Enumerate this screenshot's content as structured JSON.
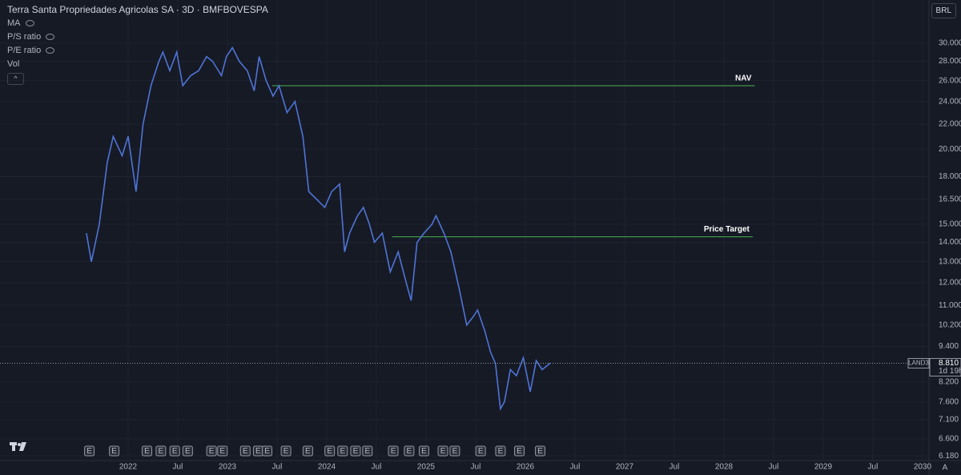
{
  "header": {
    "title": "Terra Santa Propriedades Agricolas SA · 3D · BMFBOVESPA",
    "indicators": [
      "MA",
      "P/S ratio",
      "P/E ratio",
      "Vol"
    ],
    "currency": "BRL",
    "auto": "A"
  },
  "chart_data": {
    "type": "line",
    "log_scale": true,
    "grid": true,
    "color": "#4f74d6",
    "x": [
      2021.58,
      2021.63,
      2021.71,
      2021.79,
      2021.85,
      2021.94,
      2022.0,
      2022.08,
      2022.15,
      2022.23,
      2022.31,
      2022.35,
      2022.42,
      2022.49,
      2022.55,
      2022.63,
      2022.71,
      2022.79,
      2022.85,
      2022.94,
      2022.99,
      2023.05,
      2023.12,
      2023.2,
      2023.27,
      2023.32,
      2023.39,
      2023.46,
      2023.52,
      2023.6,
      2023.68,
      2023.76,
      2023.82,
      2023.9,
      2023.98,
      2024.05,
      2024.13,
      2024.18,
      2024.23,
      2024.31,
      2024.37,
      2024.43,
      2024.48,
      2024.56,
      2024.64,
      2024.72,
      2024.8,
      2024.85,
      2024.91,
      2024.98,
      2025.06,
      2025.1,
      2025.18,
      2025.25,
      2025.33,
      2025.41,
      2025.47,
      2025.52,
      2025.59,
      2025.65,
      2025.7,
      2025.75,
      2025.79,
      2025.85,
      2025.91,
      2025.98,
      2026.05,
      2026.11,
      2026.17,
      2026.25
    ],
    "values": [
      14.5,
      13.0,
      15.0,
      19.0,
      21.0,
      19.5,
      21.0,
      17.0,
      22.0,
      25.5,
      28.0,
      29.0,
      27.0,
      29.0,
      25.5,
      26.5,
      27.0,
      28.5,
      28.0,
      26.5,
      28.5,
      29.5,
      28.0,
      27.0,
      25.0,
      28.5,
      26.0,
      24.5,
      25.5,
      23.0,
      24.0,
      21.0,
      17.0,
      16.5,
      16.0,
      17.0,
      17.5,
      13.5,
      14.5,
      15.5,
      16.0,
      15.0,
      14.0,
      14.5,
      12.5,
      13.5,
      12.0,
      11.2,
      14.0,
      14.5,
      15.0,
      15.5,
      14.5,
      13.5,
      11.8,
      10.2,
      10.5,
      10.8,
      10.0,
      9.2,
      8.8,
      7.4,
      7.6,
      8.6,
      8.4,
      9.0,
      7.9,
      8.9,
      8.6,
      8.81
    ],
    "xlim": [
      2020.71,
      2030.065
    ],
    "xticks": [
      {
        "value": 2022,
        "label": "2022"
      },
      {
        "value": 2022.5,
        "label": "Jul"
      },
      {
        "value": 2023,
        "label": "2023"
      },
      {
        "value": 2023.5,
        "label": "Jul"
      },
      {
        "value": 2024,
        "label": "2024"
      },
      {
        "value": 2024.5,
        "label": "Jul"
      },
      {
        "value": 2025,
        "label": "2025"
      },
      {
        "value": 2025.5,
        "label": "Jul"
      },
      {
        "value": 2026,
        "label": "2026"
      },
      {
        "value": 2026.5,
        "label": "Jul"
      },
      {
        "value": 2027,
        "label": "2027"
      },
      {
        "value": 2027.5,
        "label": "Jul"
      },
      {
        "value": 2028,
        "label": "2028"
      },
      {
        "value": 2028.5,
        "label": "Jul"
      },
      {
        "value": 2029,
        "label": "2029"
      },
      {
        "value": 2029.5,
        "label": "Jul"
      },
      {
        "value": 2030,
        "label": "2030"
      }
    ],
    "ylim": [
      6.07,
      35.4
    ],
    "yticks": [
      {
        "value": 30,
        "label": "30.000"
      },
      {
        "value": 28,
        "label": "28.000"
      },
      {
        "value": 26,
        "label": "26.000"
      },
      {
        "value": 24,
        "label": "24.000"
      },
      {
        "value": 22,
        "label": "22.000"
      },
      {
        "value": 20,
        "label": "20.000"
      },
      {
        "value": 18,
        "label": "18.000"
      },
      {
        "value": 16.5,
        "label": "16.500"
      },
      {
        "value": 15,
        "label": "15.000"
      },
      {
        "value": 14,
        "label": "14.000"
      },
      {
        "value": 13,
        "label": "13.000"
      },
      {
        "value": 12,
        "label": "12.000"
      },
      {
        "value": 11,
        "label": "11.000"
      },
      {
        "value": 10.2,
        "label": "10.200"
      },
      {
        "value": 9.4,
        "label": "9.400"
      },
      {
        "value": 8.2,
        "label": "8.200"
      },
      {
        "value": 7.6,
        "label": "7.600"
      },
      {
        "value": 7.1,
        "label": "7.100"
      },
      {
        "value": 6.6,
        "label": "6.600"
      },
      {
        "value": 6.18,
        "label": "6.180"
      }
    ],
    "annotations": [
      {
        "text": "NAV",
        "value": 25.5,
        "x_start": 2023.45,
        "x_end": 2028.31,
        "color": "#4caf50"
      },
      {
        "text": "Price Target",
        "value": 14.3,
        "x_start": 2024.66,
        "x_end": 2028.29,
        "color": "#4caf50"
      }
    ],
    "last_price": {
      "symbol": "LAND3",
      "value": 8.81,
      "label": "8.810",
      "countdown": "1d 19h"
    },
    "earnings": {
      "label": "E",
      "x": [
        2021.61,
        2021.86,
        2022.19,
        2022.33,
        2022.47,
        2022.6,
        2022.84,
        2022.95,
        2023.18,
        2023.31,
        2023.4,
        2023.59,
        2023.81,
        2024.03,
        2024.16,
        2024.29,
        2024.41,
        2024.67,
        2024.83,
        2024.98,
        2025.17,
        2025.29,
        2025.55,
        2025.75,
        2025.94,
        2026.15
      ]
    }
  }
}
